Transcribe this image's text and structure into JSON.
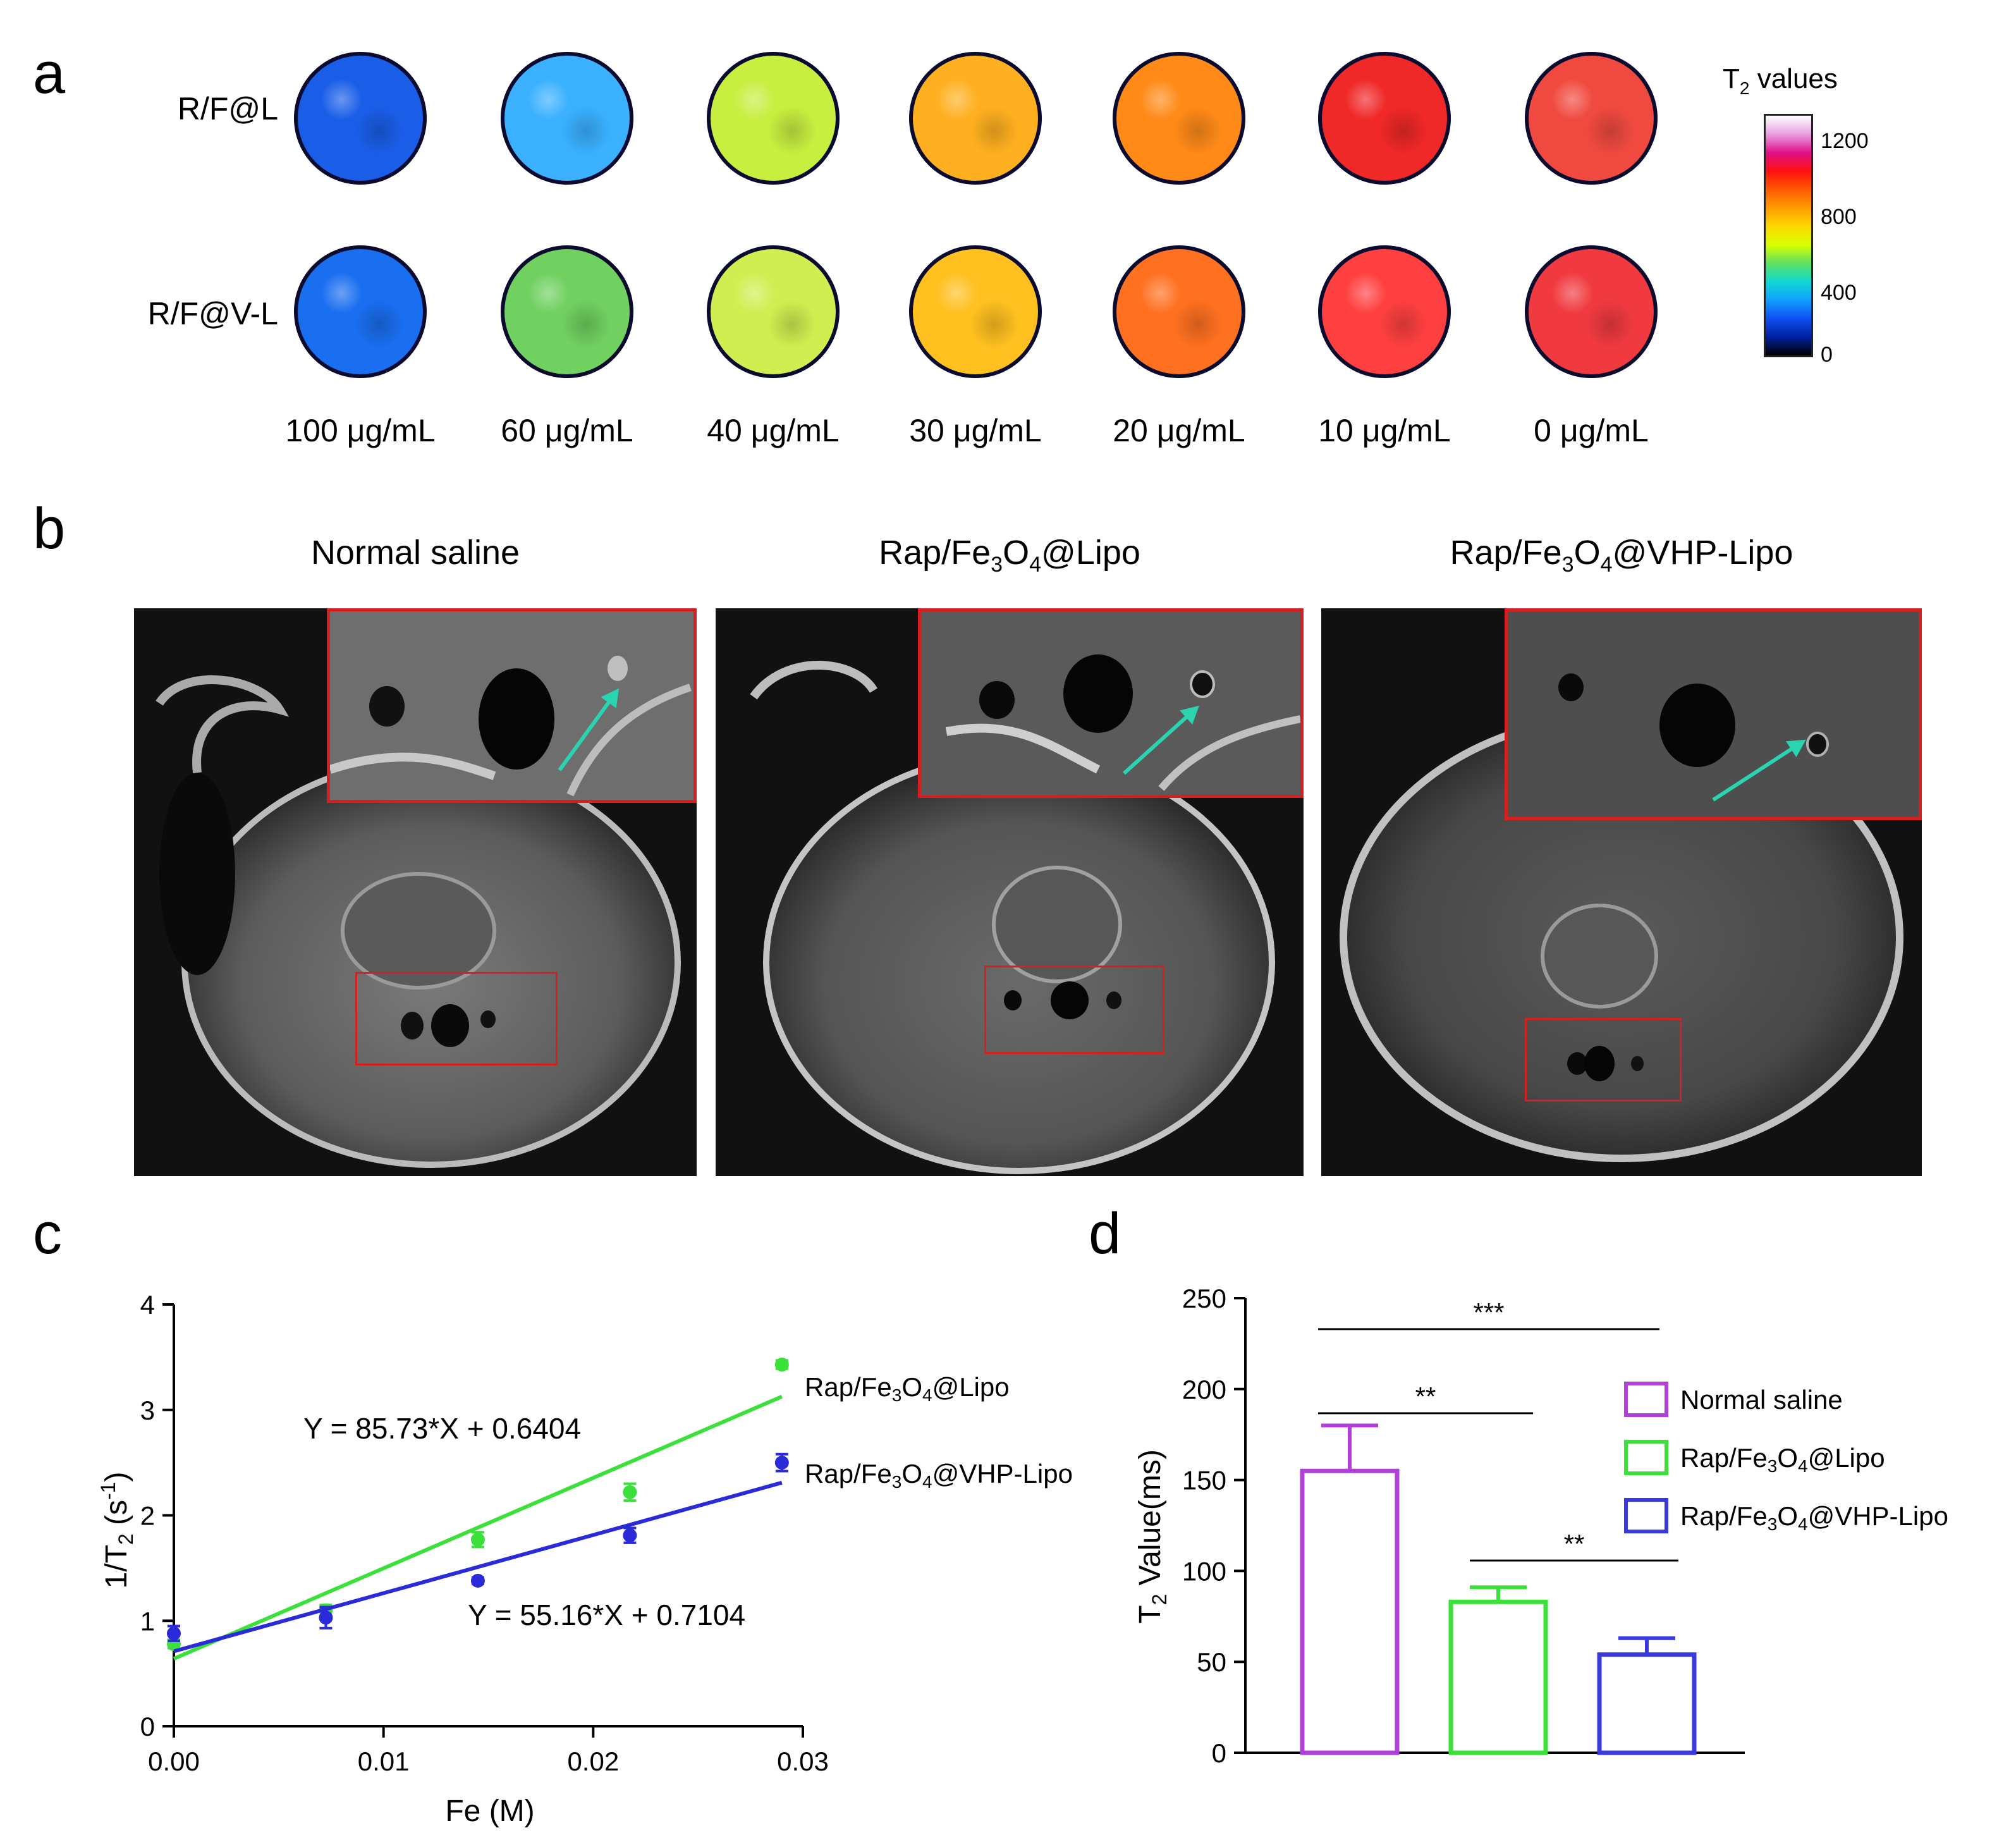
{
  "panel_a": {
    "letter": "a",
    "rows": [
      "R/F@L",
      "R/F@V-L"
    ],
    "concentrations": [
      "100 μg/mL",
      "60 μg/mL",
      "40 μg/mL",
      "30 μg/mL",
      "20 μg/mL",
      "10 μg/mL",
      "0 μg/mL"
    ],
    "colorbar": {
      "title_main": "T",
      "title_sub": "2",
      "title_rest": " values",
      "ticks": [
        "1200",
        "800",
        "400",
        "0"
      ],
      "colors": [
        "#ffffff",
        "#e8a0e0",
        "#e0108a",
        "#ff1010",
        "#ff5a00",
        "#ff9c00",
        "#ffd800",
        "#d8ff00",
        "#60e060",
        "#10d8d0",
        "#10a0ff",
        "#1050f0",
        "#0020a0",
        "#000000"
      ]
    },
    "disc_colors_row1": [
      "#1a5ee8",
      "#3ab0ff",
      "#c8ee40",
      "#ffb020",
      "#ff8a18",
      "#f02828",
      "#f04a40"
    ],
    "disc_colors_row2": [
      "#1a6ef0",
      "#70d060",
      "#d0ee50",
      "#ffc020",
      "#ff7020",
      "#ff4040",
      "#f03a40"
    ]
  },
  "panel_b": {
    "letter": "b",
    "titles": [
      {
        "pre": "Normal saline",
        "sub1": "",
        "mid": "",
        "sub2": "",
        "post": ""
      },
      {
        "pre": "Rap/Fe",
        "sub1": "3",
        "mid": "O",
        "sub2": "4",
        "post": "@Lipo"
      },
      {
        "pre": "Rap/Fe",
        "sub1": "3",
        "mid": "O",
        "sub2": "4",
        "post": "@VHP-Lipo"
      }
    ]
  },
  "chart_data": [
    {
      "type": "scatter",
      "panel": "c",
      "xlabel": "Fe (M)",
      "ylabel": "1/T2 (s-1)",
      "xlim": [
        0,
        0.03
      ],
      "ylim": [
        0,
        4
      ],
      "xticks": [
        "0.00",
        "0.01",
        "0.02",
        "0.03"
      ],
      "yticks": [
        "0",
        "1",
        "2",
        "3",
        "4"
      ],
      "series": [
        {
          "name": "Rap/Fe3O4@Lipo",
          "color": "#3be03b",
          "x": [
            0.0,
            0.00725,
            0.0145,
            0.02175,
            0.029
          ],
          "y": [
            0.78,
            1.1,
            1.77,
            2.22,
            3.43
          ],
          "err": [
            0.04,
            0.05,
            0.07,
            0.08,
            0.04
          ],
          "fit": {
            "slope": 85.73,
            "intercept": 0.6404
          },
          "equation": "Y = 85.73*X + 0.6404"
        },
        {
          "name": "Rap/Fe3O4@VHP-Lipo",
          "color": "#2a2ad8",
          "x": [
            0.0,
            0.00725,
            0.0145,
            0.02175,
            0.029
          ],
          "y": [
            0.88,
            1.03,
            1.38,
            1.81,
            2.5
          ],
          "err": [
            0.07,
            0.1,
            0.03,
            0.07,
            0.08
          ],
          "fit": {
            "slope": 55.16,
            "intercept": 0.7104
          },
          "equation": "Y = 55.16*X + 0.7104"
        }
      ]
    },
    {
      "type": "bar",
      "panel": "d",
      "ylabel": "T2 Value(ms)",
      "ylim": [
        0,
        250
      ],
      "yticks": [
        "0",
        "50",
        "100",
        "150",
        "200",
        "250"
      ],
      "categories": [
        "Normal saline",
        "Rap/Fe3O4@Lipo",
        "Rap/Fe3O4@VHP-Lipo"
      ],
      "values": [
        155,
        83,
        54
      ],
      "errors": [
        25,
        8,
        9
      ],
      "colors": [
        "#b040d8",
        "#3be03b",
        "#3a3ae0"
      ],
      "significance": [
        {
          "label": "***",
          "from": 0,
          "to": 2
        },
        {
          "label": "**",
          "from": 0,
          "to": 1
        },
        {
          "label": "**",
          "from": 1,
          "to": 2
        }
      ]
    }
  ],
  "legend_c": [
    {
      "pre": "Rap/Fe",
      "sub1": "3",
      "mid": "O",
      "sub2": "4",
      "post": "@Lipo"
    },
    {
      "pre": "Rap/Fe",
      "sub1": "3",
      "mid": "O",
      "sub2": "4",
      "post": "@VHP-Lipo"
    }
  ],
  "legend_d": [
    {
      "pre": "Normal saline",
      "sub1": "",
      "mid": "",
      "sub2": "",
      "post": ""
    },
    {
      "pre": "Rap/Fe",
      "sub1": "3",
      "mid": "O",
      "sub2": "4",
      "post": "@Lipo"
    },
    {
      "pre": "Rap/Fe",
      "sub1": "3",
      "mid": "O",
      "sub2": "4",
      "post": "@VHP-Lipo"
    }
  ],
  "labels": {
    "c_letter": "c",
    "d_letter": "d",
    "c_ylabel_main": "1/T",
    "c_ylabel_sub": "2",
    "c_ylabel_rest": " (s",
    "c_ylabel_sup": "-1",
    "c_ylabel_end": ")",
    "c_xlabel": "Fe (M)",
    "d_ylabel_main": "T",
    "d_ylabel_sub": "2",
    "d_ylabel_rest": " Value(ms)"
  }
}
